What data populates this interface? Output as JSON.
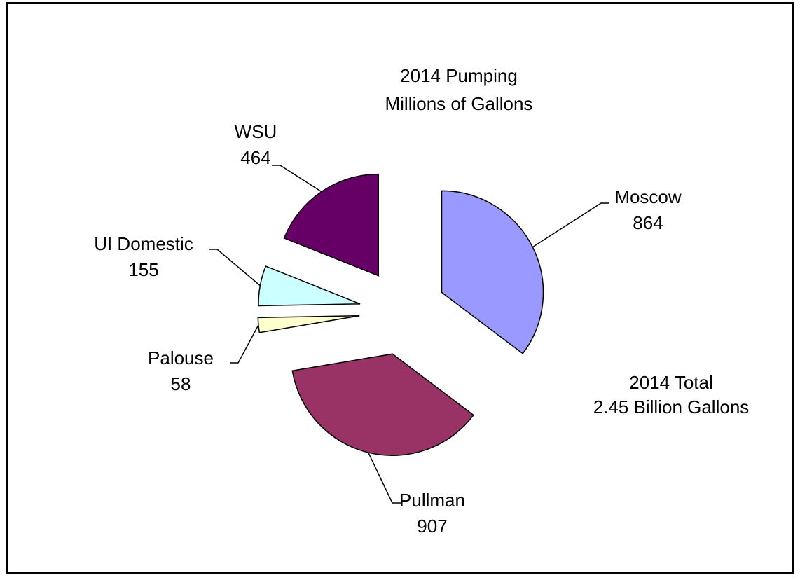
{
  "chart_data": {
    "type": "pie",
    "title": "2014 Pumping",
    "subtitle": "Millions of Gallons",
    "categories": [
      "Moscow",
      "Pullman",
      "Palouse",
      "UI Domestic",
      "WSU"
    ],
    "values": [
      864,
      907,
      58,
      155,
      464
    ],
    "colors": [
      "#9999ff",
      "#993366",
      "#ffffcc",
      "#ccffff",
      "#660066"
    ],
    "annotations": [
      "2014 Total",
      "2.45 Billion Gallons"
    ]
  }
}
